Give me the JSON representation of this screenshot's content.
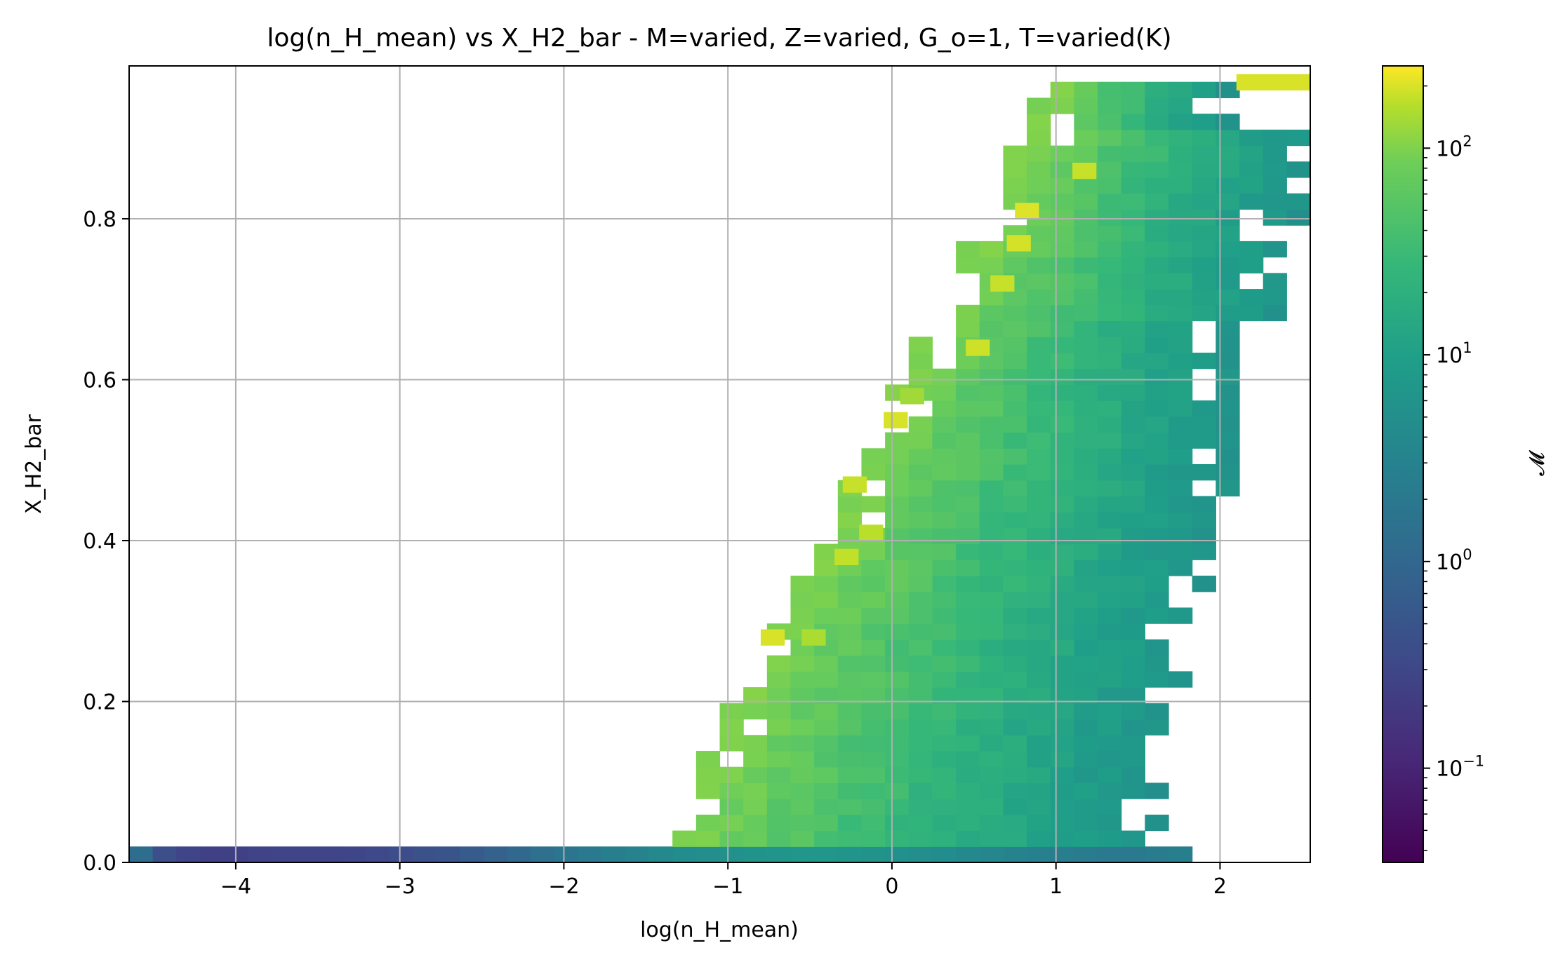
{
  "chart_data": {
    "type": "heatmap",
    "title": "log(n_H_mean) vs X_H2_bar - M=varied, Z=varied, G_o=1, T=varied(K)",
    "xlabel": "log(n_H_mean)",
    "ylabel": "X_H2_bar",
    "xlim": [
      -4.65,
      2.55
    ],
    "ylim": [
      0.0,
      0.99
    ],
    "x_ticks": [
      -4,
      -3,
      -2,
      -1,
      0,
      1,
      2
    ],
    "x_tick_labels": [
      "−4",
      "−3",
      "−2",
      "−1",
      "0",
      "1",
      "2"
    ],
    "y_ticks": [
      0.0,
      0.2,
      0.4,
      0.6,
      0.8
    ],
    "y_tick_labels": [
      "0.0",
      "0.2",
      "0.4",
      "0.6",
      "0.8"
    ],
    "grid": true,
    "colormap": "viridis",
    "colorbar": {
      "label": "𝓜",
      "scale": "log",
      "range": [
        0.035,
        250
      ],
      "tick_values": [
        0.1,
        1,
        10,
        100
      ],
      "tick_bases": [
        "10",
        "10",
        "10",
        "10"
      ],
      "tick_exponents": [
        "−1",
        "0",
        "1",
        "2"
      ]
    },
    "bin_width_x": 0.144,
    "bin_height_y": 0.0198,
    "bottom_row": {
      "y": 0.0,
      "x_bins": [
        [
          -4.65,
          0.8
        ],
        [
          -4.506,
          0.3
        ],
        [
          -4.362,
          0.22
        ],
        [
          -4.218,
          0.2
        ],
        [
          -4.074,
          0.2
        ],
        [
          -3.93,
          0.21
        ],
        [
          -3.786,
          0.22
        ],
        [
          -3.642,
          0.22
        ],
        [
          -3.498,
          0.22
        ],
        [
          -3.354,
          0.23
        ],
        [
          -3.21,
          0.25
        ],
        [
          -3.066,
          0.28
        ],
        [
          -2.922,
          0.32
        ],
        [
          -2.778,
          0.36
        ],
        [
          -2.634,
          0.45
        ],
        [
          -2.49,
          0.55
        ],
        [
          -2.346,
          0.7
        ],
        [
          -2.202,
          0.9
        ],
        [
          -2.058,
          1.1
        ],
        [
          -1.914,
          1.3
        ],
        [
          -1.77,
          1.6
        ],
        [
          -1.626,
          1.9
        ],
        [
          -1.482,
          2.2
        ],
        [
          -1.338,
          2.6
        ],
        [
          -1.194,
          2.8
        ],
        [
          -1.05,
          3.0
        ],
        [
          -0.906,
          3.3
        ],
        [
          -0.762,
          3.5
        ],
        [
          -0.618,
          3.6
        ],
        [
          -0.474,
          3.6
        ],
        [
          -0.33,
          3.5
        ],
        [
          -0.186,
          3.3
        ],
        [
          -0.042,
          3.0
        ],
        [
          0.102,
          2.8
        ],
        [
          0.246,
          2.6
        ],
        [
          0.39,
          2.3
        ],
        [
          0.534,
          2.1
        ],
        [
          0.678,
          1.9
        ],
        [
          0.822,
          1.7
        ],
        [
          0.966,
          1.5
        ],
        [
          1.11,
          1.4
        ],
        [
          1.254,
          1.3
        ],
        [
          1.398,
          1.3
        ],
        [
          1.542,
          1.4
        ],
        [
          1.686,
          1.6
        ]
      ]
    },
    "regions": [
      {
        "name": "main-distribution-band",
        "x_range_by_y": "lower edge rises from about log(n_H_mean)=-1.3 at X_H2_bar=0.02 to about 1.0 at X_H2_bar=0.95; upper edge from about 1.6 at X_H2_bar=0.02 to about 2.5 at X_H2_bar=0.98",
        "M_low_x_edge": 40,
        "M_high_x_edge": 3
      },
      {
        "name": "top-right-cluster",
        "x": [
          2.1,
          2.55
        ],
        "y": [
          0.96,
          0.99
        ],
        "M": 150
      }
    ],
    "outlier_bins": [
      [
        -0.8,
        0.27,
        150
      ],
      [
        -0.55,
        0.27,
        80
      ],
      [
        -0.3,
        0.46,
        120
      ],
      [
        -0.2,
        0.4,
        100
      ],
      [
        -0.35,
        0.37,
        110
      ],
      [
        -0.05,
        0.54,
        150
      ],
      [
        0.05,
        0.57,
        70
      ],
      [
        0.45,
        0.63,
        130
      ],
      [
        0.6,
        0.71,
        120
      ],
      [
        0.7,
        0.76,
        140
      ],
      [
        0.75,
        0.8,
        160
      ],
      [
        1.1,
        0.85,
        120
      ]
    ]
  }
}
